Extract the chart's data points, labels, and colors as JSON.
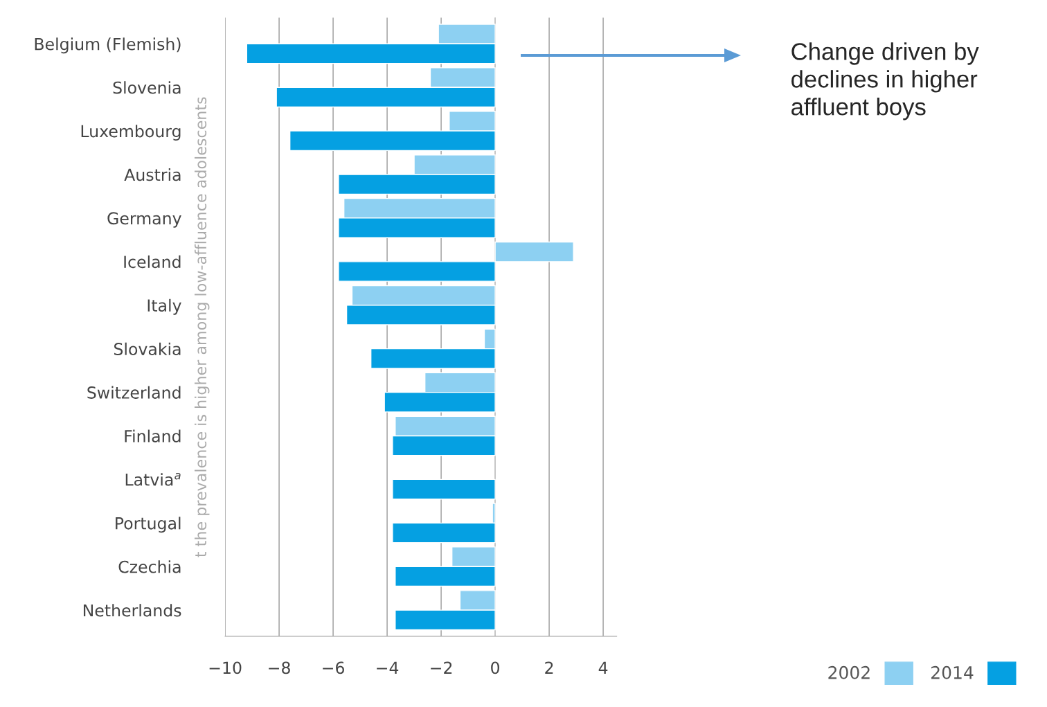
{
  "chart_data": {
    "type": "bar",
    "orientation": "horizontal",
    "categories": [
      "Belgium (Flemish)",
      "Slovenia",
      "Luxembourg",
      "Austria",
      "Germany",
      "Iceland",
      "Italy",
      "Slovakia",
      "Switzerland",
      "Finland",
      "Latvia$^{a}$",
      "Portugal",
      "Czechia",
      "Netherlands"
    ],
    "series": [
      {
        "name": "2002",
        "color": "#8dd0f2",
        "values": [
          -2.1,
          -2.4,
          -1.7,
          -3.0,
          -5.6,
          2.9,
          -5.3,
          -0.4,
          -2.6,
          -3.7,
          null,
          -0.1,
          -1.6,
          -1.3
        ]
      },
      {
        "name": "2014",
        "color": "#05a0e2",
        "values": [
          -9.2,
          -8.1,
          -7.6,
          -5.8,
          -5.8,
          -5.8,
          -5.5,
          -4.6,
          -4.1,
          -3.8,
          -3.8,
          -3.8,
          -3.7,
          -3.7
        ]
      }
    ],
    "ylabel": "t the prevalence is higher among low-affluence adolescents",
    "xlim": [
      -10,
      4.5
    ],
    "xticks": [
      {
        "value": -10,
        "label": "−10"
      },
      {
        "value": -8,
        "label": "−8"
      },
      {
        "value": -6,
        "label": "−6"
      },
      {
        "value": -4,
        "label": "−4"
      },
      {
        "value": -2,
        "label": "−2"
      },
      0,
      2,
      4
    ],
    "grid": "x",
    "legend": "bottom right",
    "annotations": [
      "Change driven by declines in higher affluent boys"
    ]
  }
}
